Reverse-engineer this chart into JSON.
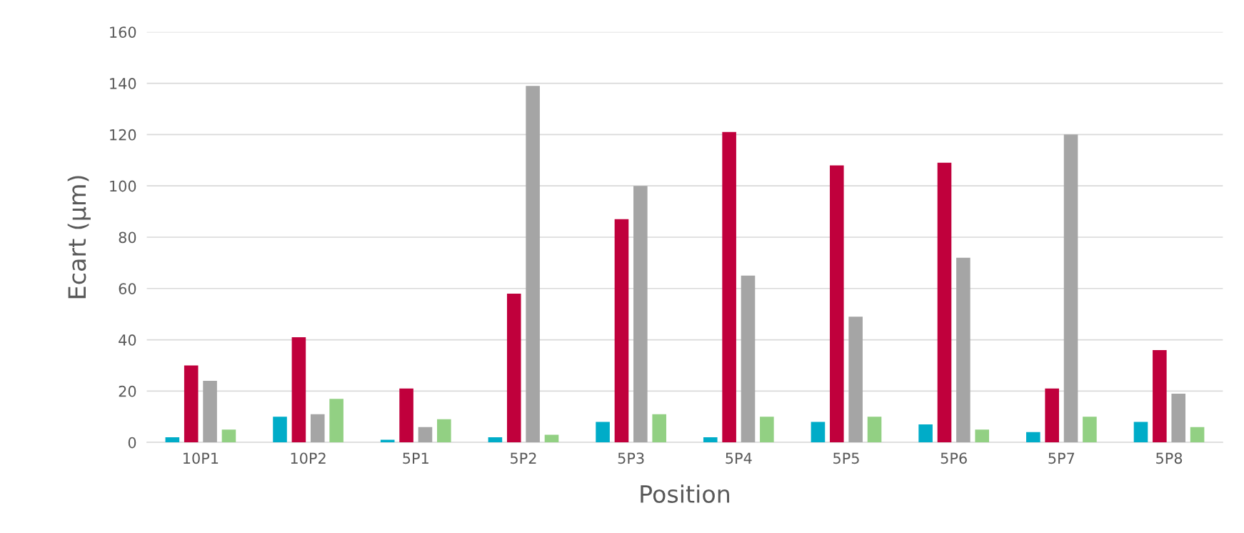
{
  "chart_data": {
    "type": "bar",
    "xlabel": "Position",
    "ylabel": "Ecart (µm)",
    "categories": [
      "10P1",
      "10P2",
      "5P1",
      "5P2",
      "5P3",
      "5P4",
      "5P5",
      "5P6",
      "5P7",
      "5P8"
    ],
    "series": [
      {
        "color": "#00acc8",
        "values": [
          2,
          10,
          1,
          2,
          8,
          2,
          8,
          7,
          4,
          8
        ]
      },
      {
        "color": "#c0003c",
        "values": [
          30,
          41,
          21,
          58,
          87,
          121,
          108,
          109,
          21,
          36
        ]
      },
      {
        "color": "#a5a5a5",
        "values": [
          24,
          11,
          6,
          139,
          100,
          65,
          49,
          72,
          120,
          19
        ]
      },
      {
        "color": "#92d083",
        "values": [
          5,
          17,
          9,
          3,
          11,
          10,
          10,
          5,
          10,
          6
        ]
      }
    ],
    "ylim": [
      0,
      160
    ],
    "yticks": [
      0,
      20,
      40,
      60,
      80,
      100,
      120,
      140,
      160
    ],
    "grid": "y",
    "legend": false
  }
}
